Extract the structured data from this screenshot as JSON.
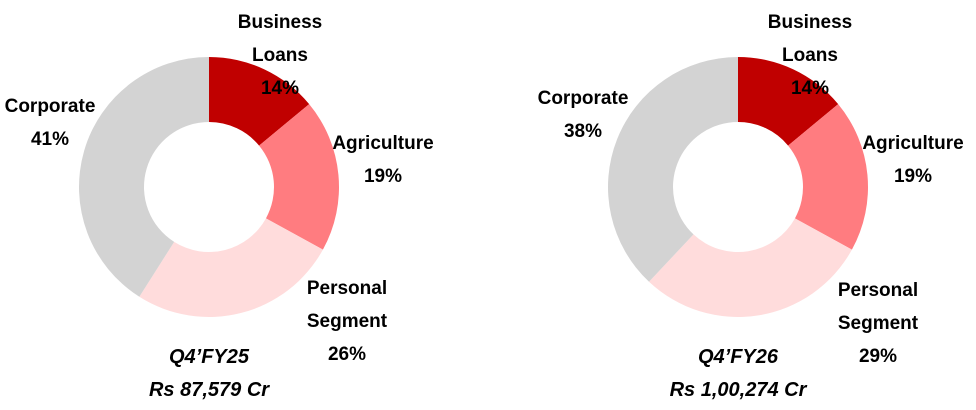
{
  "chart_data": [
    {
      "type": "donut",
      "title": "Q4’FY25",
      "subtitle": "Rs 87,579 Cr",
      "categories": [
        "Business Loans",
        "Agriculture",
        "Personal Segment",
        "Corporate"
      ],
      "values": [
        14,
        19,
        26,
        41
      ],
      "value_labels": [
        "14%",
        "19%",
        "26%",
        "41%"
      ],
      "colors": [
        "#c00000",
        "#ff7c80",
        "#ffdcdc",
        "#d3d3d3"
      ]
    },
    {
      "type": "donut",
      "title": "Q4’FY26",
      "subtitle": "Rs 1,00,274 Cr",
      "categories": [
        "Business Loans",
        "Agriculture",
        "Personal Segment",
        "Corporate"
      ],
      "values": [
        14,
        19,
        29,
        38
      ],
      "value_labels": [
        "14%",
        "19%",
        "29%",
        "38%"
      ],
      "colors": [
        "#c00000",
        "#ff7c80",
        "#ffdcdc",
        "#d3d3d3"
      ]
    }
  ]
}
